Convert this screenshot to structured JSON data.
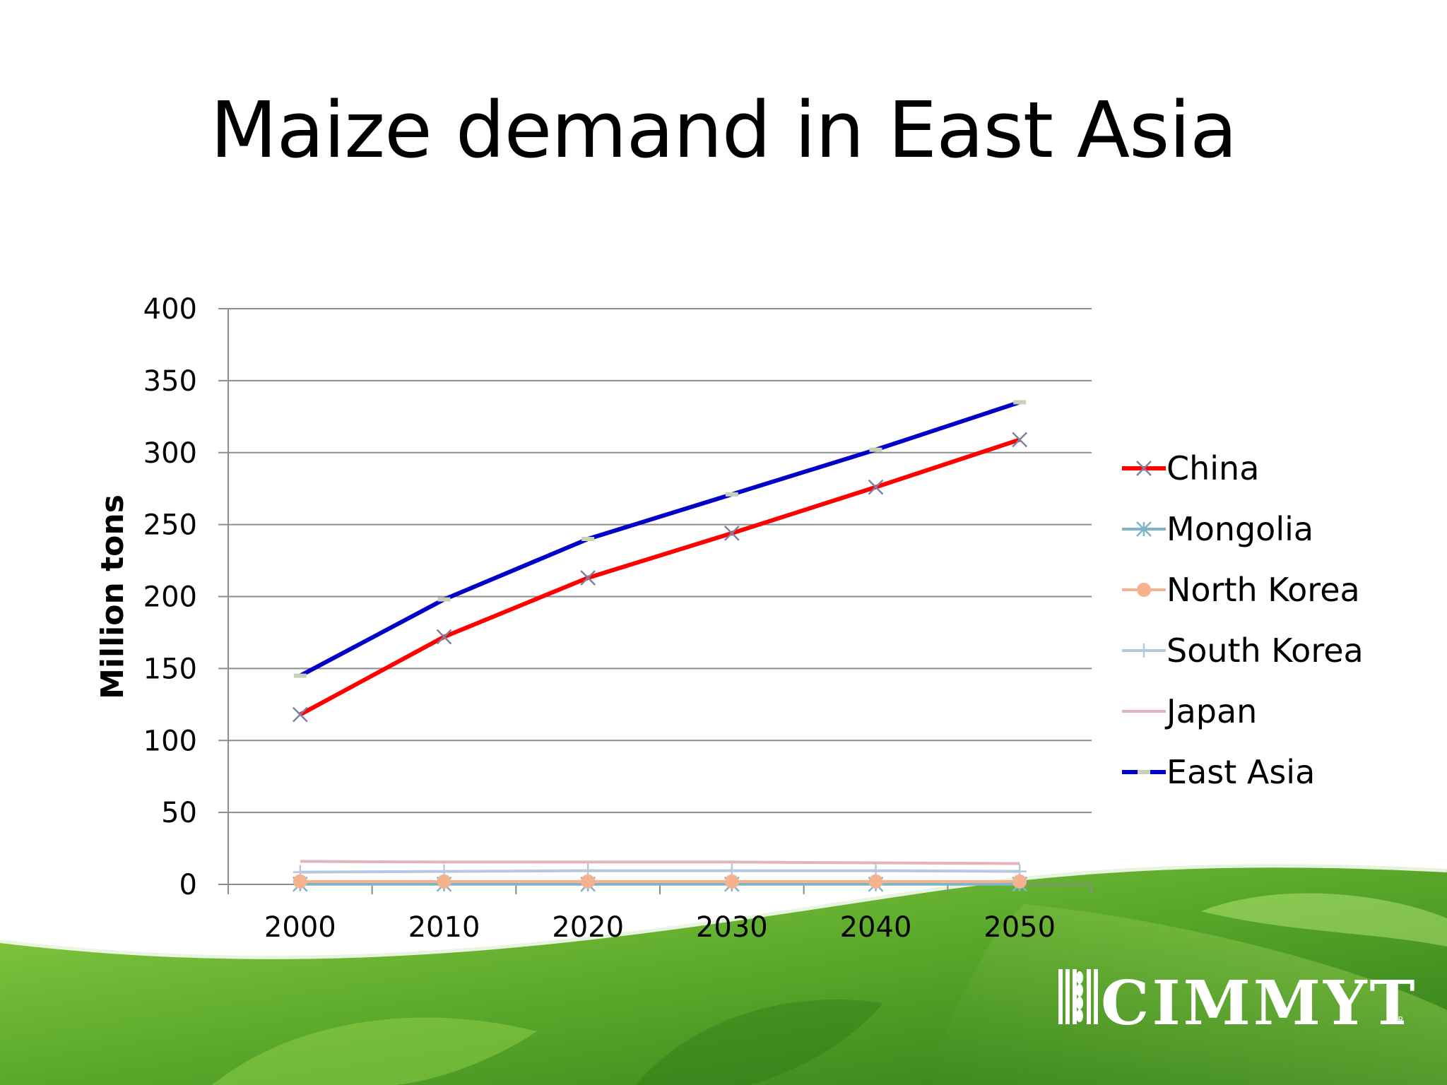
{
  "slide": {
    "title": "Maize demand in East Asia",
    "logo_text": "CIMMYT",
    "logo_mark": "MR"
  },
  "colors": {
    "background_green_dark": "#3f8f1c",
    "background_green_light": "#7cc53a"
  },
  "chart_data": {
    "type": "line",
    "title": "",
    "xlabel": "",
    "ylabel": "Million tons",
    "x": [
      2000,
      2010,
      2020,
      2030,
      2040,
      2050
    ],
    "x_tick_labels": [
      "2000",
      "2010",
      "2020",
      "2030",
      "2040",
      "2050"
    ],
    "ylim": [
      0,
      400
    ],
    "y_ticks": [
      0,
      50,
      100,
      150,
      200,
      250,
      300,
      350,
      400
    ],
    "y_tick_labels": [
      "0",
      "50",
      "100",
      "150",
      "200",
      "250",
      "300",
      "350",
      "400"
    ],
    "grid": true,
    "legend_position": "right",
    "series": [
      {
        "name": "China",
        "values": [
          118,
          172,
          213,
          244,
          276,
          309
        ],
        "color": "#ff0000",
        "marker": "x",
        "marker_color": "#8080a0"
      },
      {
        "name": "Mongolia",
        "values": [
          0.1,
          0.1,
          0.1,
          0.1,
          0.1,
          0.1
        ],
        "color": "#7fb3c8",
        "marker": "asterisk",
        "marker_color": "#7fb3c8"
      },
      {
        "name": "North Korea",
        "values": [
          2,
          2,
          2,
          2,
          2,
          2
        ],
        "color": "#f5b28f",
        "marker": "circle",
        "marker_color": "#f5b28f"
      },
      {
        "name": "South Korea",
        "values": [
          8.5,
          9,
          9.5,
          9.5,
          9.5,
          9
        ],
        "color": "#b4c8e0",
        "marker": "plus",
        "marker_color": "#b4c8e0"
      },
      {
        "name": "Japan",
        "values": [
          16,
          15.5,
          15.5,
          15.5,
          15,
          14.5
        ],
        "color": "#e0b4b8",
        "marker": "none",
        "marker_color": "#e0b4b8"
      },
      {
        "name": "East Asia",
        "values": [
          145,
          198,
          240,
          271,
          302,
          335
        ],
        "color": "#0000c8",
        "marker": "dash",
        "marker_color": "#c8d0b8"
      }
    ]
  }
}
